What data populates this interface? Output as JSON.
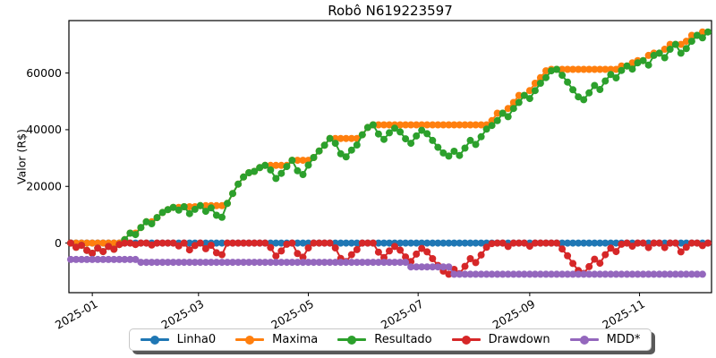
{
  "figure": {
    "background": "#ffffff"
  },
  "chart_data": {
    "type": "line",
    "title": "Robô N619223597",
    "ylabel": "Valor (R$)",
    "xlabel": "",
    "grid": false,
    "legend_position": "bottom-center",
    "marker": "circle",
    "x_unit": "days since 2024-12-20, daily equity series",
    "xlim": [
      -1,
      356
    ],
    "ylim": [
      -17500,
      78500
    ],
    "x_ticks": [
      {
        "day": 12,
        "label": "2025-01"
      },
      {
        "day": 71,
        "label": "2025-03"
      },
      {
        "day": 132,
        "label": "2025-05"
      },
      {
        "day": 193,
        "label": "2025-07"
      },
      {
        "day": 255,
        "label": "2025-09"
      },
      {
        "day": 316,
        "label": "2025-11"
      }
    ],
    "y_ticks": [
      {
        "value": 0,
        "label": "0"
      },
      {
        "value": 20000,
        "label": "20000"
      },
      {
        "value": 40000,
        "label": "40000"
      },
      {
        "value": 60000,
        "label": "60000"
      }
    ],
    "days": [
      0,
      3,
      6,
      9,
      12,
      15,
      18,
      21,
      24,
      27,
      30,
      33,
      36,
      39,
      42,
      45,
      48,
      51,
      54,
      57,
      60,
      63,
      66,
      69,
      72,
      75,
      78,
      81,
      84,
      87,
      90,
      93,
      96,
      99,
      102,
      105,
      108,
      111,
      114,
      117,
      120,
      123,
      126,
      129,
      132,
      135,
      138,
      141,
      144,
      147,
      150,
      153,
      156,
      159,
      162,
      165,
      168,
      171,
      174,
      177,
      180,
      183,
      186,
      189,
      192,
      195,
      198,
      201,
      204,
      207,
      210,
      213,
      216,
      219,
      222,
      225,
      228,
      231,
      234,
      237,
      240,
      243,
      246,
      249,
      252,
      255,
      258,
      261,
      264,
      267,
      270,
      273,
      276,
      279,
      282,
      285,
      288,
      291,
      294,
      297,
      300,
      303,
      306,
      309,
      312,
      315,
      318,
      321,
      324,
      327,
      330,
      333,
      336,
      339,
      342,
      345,
      348,
      351,
      354
    ],
    "series": [
      {
        "name": "Linha0",
        "color": "#1f77b4",
        "values": [
          0,
          0,
          0,
          0,
          0,
          0,
          0,
          0,
          0,
          0,
          0,
          0,
          0,
          0,
          0,
          0,
          0,
          0,
          0,
          0,
          0,
          0,
          0,
          0,
          0,
          0,
          0,
          0,
          0,
          0,
          0,
          0,
          0,
          0,
          0,
          0,
          0,
          0,
          0,
          0,
          0,
          0,
          0,
          0,
          0,
          0,
          0,
          0,
          0,
          0,
          0,
          0,
          0,
          0,
          0,
          0,
          0,
          0,
          0,
          0,
          0,
          0,
          0,
          0,
          0,
          0,
          0,
          0,
          0,
          0,
          0,
          0,
          0,
          0,
          0,
          0,
          0,
          0,
          0,
          0,
          0,
          0,
          0,
          0,
          0,
          0,
          0,
          0,
          0,
          0,
          0,
          0,
          0,
          0,
          0,
          0,
          0,
          0,
          0,
          0,
          0,
          0,
          0,
          0,
          0,
          0,
          0,
          0,
          0,
          0,
          0,
          0,
          0,
          0,
          0,
          0,
          0,
          0,
          0
        ]
      },
      {
        "name": "Maxima",
        "color": "#ff7f0e",
        "values": [
          0,
          0,
          0,
          0,
          0,
          0,
          0,
          0,
          0,
          0,
          1200,
          3500,
          3500,
          5500,
          7500,
          7500,
          9000,
          10800,
          11800,
          12600,
          12600,
          12800,
          12800,
          12800,
          13200,
          13200,
          13200,
          13200,
          13200,
          14000,
          17500,
          20800,
          23300,
          24800,
          25300,
          26600,
          27400,
          27400,
          27400,
          27400,
          27400,
          29200,
          29200,
          29200,
          29200,
          30200,
          32500,
          34500,
          36900,
          36900,
          36900,
          36900,
          36900,
          36900,
          38200,
          40800,
          41700,
          41700,
          41700,
          41700,
          41700,
          41700,
          41700,
          41700,
          41700,
          41700,
          41700,
          41700,
          41700,
          41700,
          41700,
          41700,
          41700,
          41700,
          41700,
          41700,
          41700,
          41700,
          43200,
          45800,
          45800,
          47500,
          49600,
          52100,
          52100,
          53800,
          56400,
          58400,
          60800,
          61300,
          61300,
          61300,
          61300,
          61300,
          61300,
          61300,
          61300,
          61300,
          61300,
          61300,
          61300,
          61300,
          62500,
          62500,
          63600,
          64400,
          64400,
          66200,
          67000,
          67000,
          68400,
          70100,
          70100,
          70100,
          71200,
          73300,
          73300,
          74500
        ]
      },
      {
        "name": "Resultado",
        "color": "#2ca02c",
        "values": [
          0,
          -1500,
          -800,
          -2600,
          -3600,
          -1800,
          -3000,
          -1200,
          -2200,
          -500,
          1200,
          3500,
          3000,
          5500,
          7500,
          6800,
          9000,
          10800,
          11800,
          12600,
          11600,
          12800,
          10400,
          11900,
          13200,
          11200,
          12400,
          9800,
          9100,
          14000,
          17500,
          20800,
          23300,
          24800,
          25300,
          26600,
          27400,
          25800,
          22800,
          24600,
          27000,
          29200,
          25500,
          24200,
          27500,
          30200,
          32500,
          34500,
          36900,
          35200,
          31500,
          30400,
          32800,
          34600,
          38200,
          40800,
          41700,
          38500,
          36600,
          38900,
          40500,
          39200,
          36800,
          35200,
          37800,
          39800,
          38600,
          36200,
          33800,
          31800,
          30700,
          32400,
          30900,
          33500,
          36200,
          34800,
          37500,
          40200,
          41500,
          43200,
          45800,
          44600,
          47500,
          49600,
          52100,
          51000,
          53800,
          56400,
          58400,
          60800,
          61300,
          59200,
          56800,
          54100,
          51600,
          50600,
          53000,
          55600,
          54200,
          57200,
          59500,
          58300,
          60900,
          62500,
          61400,
          63600,
          64400,
          62800,
          66200,
          67000,
          65400,
          68400,
          70100,
          67000,
          68600,
          71200,
          73300,
          72400,
          74500
        ]
      },
      {
        "name": "Drawdown",
        "color": "#d62728",
        "values": [
          0,
          -1500,
          -800,
          -2600,
          -3600,
          -1800,
          -3000,
          -1200,
          -2200,
          -500,
          0,
          0,
          -500,
          0,
          0,
          -700,
          0,
          0,
          0,
          0,
          -1000,
          0,
          -2400,
          -900,
          0,
          -2000,
          -800,
          -3400,
          -4100,
          0,
          0,
          0,
          0,
          0,
          0,
          0,
          0,
          -1600,
          -4600,
          -2800,
          -400,
          0,
          -3700,
          -5000,
          -1700,
          0,
          0,
          0,
          0,
          -1700,
          -5400,
          -6500,
          -4100,
          -2300,
          0,
          0,
          0,
          -3200,
          -5100,
          -2800,
          -1200,
          -2500,
          -4900,
          -6500,
          -3900,
          -1900,
          -3100,
          -5500,
          -7900,
          -9900,
          -11000,
          -9300,
          -10800,
          -8200,
          -5500,
          -6900,
          -4200,
          -1500,
          -200,
          0,
          0,
          -1200,
          0,
          0,
          0,
          -1100,
          0,
          0,
          0,
          0,
          0,
          -2100,
          -4500,
          -7200,
          -9700,
          -10700,
          -8300,
          -5700,
          -7100,
          -4100,
          -1800,
          -3000,
          -400,
          0,
          -1100,
          0,
          0,
          -1600,
          0,
          0,
          -1600,
          0,
          0,
          -3100,
          -1500,
          0,
          0,
          -900,
          0
        ]
      },
      {
        "name": "MDD*",
        "color": "#9467bd",
        "values": [
          -5800,
          -5800,
          -5800,
          -5800,
          -5800,
          -5800,
          -5800,
          -5800,
          -5800,
          -5800,
          -5800,
          -5800,
          -5800,
          -6800,
          -6800,
          -6800,
          -6800,
          -6800,
          -6800,
          -6800,
          -6800,
          -6800,
          -6800,
          -6800,
          -6800,
          -6800,
          -6800,
          -6800,
          -6800,
          -6800,
          -6800,
          -6800,
          -6800,
          -6800,
          -6800,
          -6800,
          -6800,
          -6800,
          -6800,
          -6800,
          -6800,
          -6800,
          -6800,
          -6800,
          -6800,
          -6800,
          -6800,
          -6800,
          -6800,
          -6800,
          -6800,
          -6800,
          -6800,
          -6800,
          -6800,
          -6800,
          -6800,
          -6800,
          -6800,
          -6800,
          -6800,
          -6800,
          -6800,
          -8400,
          -8400,
          -8400,
          -8400,
          -8400,
          -8400,
          -8400,
          -8400,
          -11000,
          -11000,
          -11000,
          -11000,
          -11000,
          -11000,
          -11000,
          -11000,
          -11000,
          -11000,
          -11000,
          -11000,
          -11000,
          -11000,
          -11000,
          -11000,
          -11000,
          -11000,
          -11000,
          -11000,
          -11000,
          -11000,
          -11000,
          -11000,
          -11000,
          -11000,
          -11000,
          -11000,
          -11000,
          -11000,
          -11000,
          -11000,
          -11000,
          -11000,
          -11000,
          -11000,
          -11000,
          -11000,
          -11000,
          -11000,
          -11000,
          -11000,
          -11000,
          -11000,
          -11000,
          -11000,
          -11000
        ]
      }
    ]
  }
}
